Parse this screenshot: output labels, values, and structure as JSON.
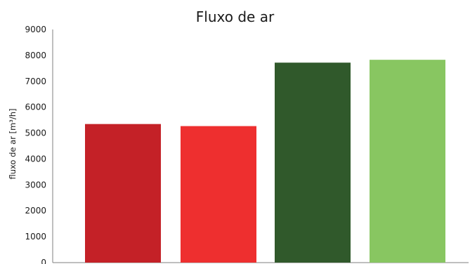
{
  "chart_data": {
    "type": "bar",
    "title": "Fluxo de ar",
    "xlabel": "",
    "ylabel": "fluxo de ar [m³/h]",
    "ylim": [
      0,
      9000
    ],
    "yticks": [
      0,
      1000,
      2000,
      3000,
      4000,
      5000,
      6000,
      7000,
      8000,
      9000
    ],
    "grid": false,
    "categories": [
      "",
      "",
      "",
      ""
    ],
    "values": [
      5350,
      5270,
      7720,
      7830
    ],
    "colors": [
      "#c42127",
      "#ee2f2f",
      "#30592b",
      "#88c661"
    ]
  }
}
